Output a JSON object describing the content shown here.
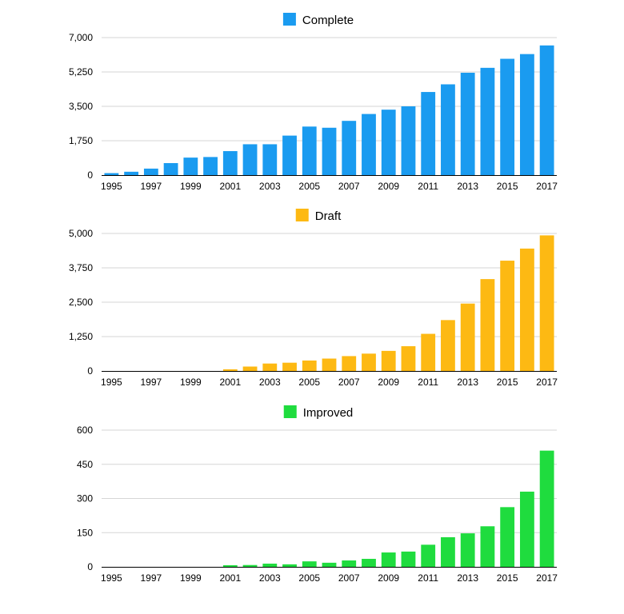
{
  "chart_data": [
    {
      "type": "bar",
      "categories": [
        "1995",
        "1996",
        "1997",
        "1998",
        "1999",
        "2000",
        "2001",
        "2002",
        "2003",
        "2004",
        "2005",
        "2006",
        "2007",
        "2008",
        "2009",
        "2010",
        "2011",
        "2012",
        "2013",
        "2014",
        "2015",
        "2016",
        "2017"
      ],
      "x_tick_labels": [
        "1995",
        "1997",
        "1999",
        "2001",
        "2003",
        "2005",
        "2007",
        "2009",
        "2011",
        "2013",
        "2015",
        "2017"
      ],
      "y_tick_labels": [
        "0",
        "1,750",
        "3,500",
        "5,250",
        "7,000"
      ],
      "y_ticks": [
        0,
        1750,
        3500,
        5250,
        7000
      ],
      "ylim": [
        0,
        7000
      ],
      "series": [
        {
          "name": "Complete",
          "color": "#1a9bf0",
          "values": [
            100,
            170,
            330,
            610,
            890,
            920,
            1220,
            1570,
            1570,
            2010,
            2470,
            2410,
            2760,
            3110,
            3330,
            3500,
            4230,
            4620,
            5210,
            5460,
            5920,
            6160,
            6600
          ]
        }
      ],
      "legend": "top-center",
      "grid": true,
      "title": "",
      "xlabel": "",
      "ylabel": ""
    },
    {
      "type": "bar",
      "categories": [
        "1995",
        "1996",
        "1997",
        "1998",
        "1999",
        "2000",
        "2001",
        "2002",
        "2003",
        "2004",
        "2005",
        "2006",
        "2007",
        "2008",
        "2009",
        "2010",
        "2011",
        "2012",
        "2013",
        "2014",
        "2015",
        "2016",
        "2017"
      ],
      "x_tick_labels": [
        "1995",
        "1997",
        "1999",
        "2001",
        "2003",
        "2005",
        "2007",
        "2009",
        "2011",
        "2013",
        "2015",
        "2017"
      ],
      "y_tick_labels": [
        "0",
        "1,250",
        "2,500",
        "3,750",
        "5,000"
      ],
      "y_ticks": [
        0,
        1250,
        2500,
        3750,
        5000
      ],
      "ylim": [
        0,
        5000
      ],
      "series": [
        {
          "name": "Draft",
          "color": "#fdb913",
          "values": [
            0,
            0,
            0,
            0,
            0,
            0,
            60,
            160,
            270,
            300,
            380,
            450,
            540,
            630,
            730,
            900,
            1350,
            1850,
            2450,
            3340,
            4010,
            4450,
            4930
          ]
        }
      ],
      "legend": "top-center",
      "grid": true,
      "title": "",
      "xlabel": "",
      "ylabel": ""
    },
    {
      "type": "bar",
      "categories": [
        "1995",
        "1996",
        "1997",
        "1998",
        "1999",
        "2000",
        "2001",
        "2002",
        "2003",
        "2004",
        "2005",
        "2006",
        "2007",
        "2008",
        "2009",
        "2010",
        "2011",
        "2012",
        "2013",
        "2014",
        "2015",
        "2016",
        "2017"
      ],
      "x_tick_labels": [
        "1995",
        "1997",
        "1999",
        "2001",
        "2003",
        "2005",
        "2007",
        "2009",
        "2011",
        "2013",
        "2015",
        "2017"
      ],
      "y_tick_labels": [
        "0",
        "150",
        "300",
        "450",
        "600"
      ],
      "y_ticks": [
        0,
        150,
        300,
        450,
        600
      ],
      "ylim": [
        0,
        600
      ],
      "series": [
        {
          "name": "Improved",
          "color": "#1fdc3e",
          "values": [
            0,
            0,
            0,
            0,
            0,
            0,
            7,
            8,
            14,
            11,
            24,
            18,
            28,
            35,
            63,
            67,
            97,
            130,
            147,
            178,
            262,
            330,
            510
          ]
        }
      ],
      "legend": "top-center",
      "grid": true,
      "title": "",
      "xlabel": "",
      "ylabel": ""
    }
  ]
}
